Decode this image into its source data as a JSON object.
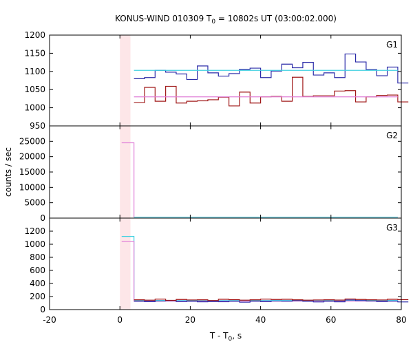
{
  "chart_data": {
    "type": "line",
    "title_prefix": "KONUS-WIND 010309 T",
    "title_sub": "0",
    "title_suffix": " = 10802s UT (03:00:02.000)",
    "xlabel_prefix": "T - T",
    "xlabel_sub": "0",
    "xlabel_suffix": ", s",
    "ylabel": "counts / sec",
    "xlim": [
      -20,
      80
    ],
    "x_ticks": [
      "-20",
      "0",
      "20",
      "40",
      "60",
      "80"
    ],
    "shaded_interval": [
      0,
      3
    ],
    "panels": [
      {
        "name": "G1",
        "ylim": [
          950,
          1200
        ],
        "y_ticks": [
          "950",
          "1000",
          "1050",
          "1100",
          "1150",
          "1200"
        ],
        "series": [
          {
            "color": "#2a2aa8",
            "x": [
              4,
              7,
              10,
              13,
              16,
              19,
              22,
              25,
              28,
              31,
              34,
              37,
              40,
              43,
              46,
              49,
              52,
              55,
              58,
              61,
              64,
              67,
              70,
              73,
              76,
              79
            ],
            "y": [
              1080,
              1083,
              1103,
              1098,
              1093,
              1078,
              1115,
              1096,
              1087,
              1094,
              1106,
              1109,
              1083,
              1101,
              1120,
              1110,
              1125,
              1090,
              1096,
              1083,
              1148,
              1126,
              1105,
              1088,
              1112,
              1068
            ]
          },
          {
            "color": "#a01818",
            "x": [
              4,
              7,
              10,
              13,
              16,
              19,
              22,
              25,
              28,
              31,
              34,
              37,
              40,
              43,
              46,
              49,
              52,
              55,
              58,
              61,
              64,
              67,
              70,
              73,
              76,
              79
            ],
            "y": [
              1014,
              1056,
              1018,
              1059,
              1013,
              1018,
              1019,
              1022,
              1029,
              1005,
              1043,
              1013,
              1030,
              1031,
              1018,
              1084,
              1031,
              1033,
              1033,
              1046,
              1047,
              1016,
              1030,
              1034,
              1035,
              1016
            ]
          },
          {
            "color": "#40d0e0",
            "x": [
              4,
              79
            ],
            "y": [
              1103,
              1103
            ]
          },
          {
            "color": "#e080d8",
            "x": [
              4,
              79
            ],
            "y": [
              1030,
              1030
            ]
          }
        ]
      },
      {
        "name": "G2",
        "ylim": [
          0,
          30000
        ],
        "y_ticks": [
          "0",
          "5000",
          "10000",
          "15000",
          "20000",
          "25000"
        ],
        "series": [
          {
            "color": "#e080d8",
            "x": [
              0.5,
              4,
              4,
              79
            ],
            "y": [
              24500,
              24500,
              320,
              320
            ]
          },
          {
            "color": "#40d0e0",
            "x": [
              4,
              79
            ],
            "y": [
              320,
              320
            ]
          }
        ]
      },
      {
        "name": "G3",
        "ylim": [
          0,
          1400
        ],
        "y_ticks": [
          "0",
          "200",
          "400",
          "600",
          "800",
          "1000",
          "1200"
        ],
        "series": [
          {
            "color": "#40d0e0",
            "x": [
              0.5,
              4,
              4,
              79
            ],
            "y": [
              1120,
              1120,
              140,
              140
            ]
          },
          {
            "color": "#e080d8",
            "x": [
              0.5,
              4,
              4,
              79
            ],
            "y": [
              1045,
              1045,
              130,
              130
            ]
          },
          {
            "color": "#2a2aa8",
            "x": [
              4,
              7,
              10,
              13,
              16,
              19,
              22,
              25,
              28,
              31,
              34,
              37,
              40,
              43,
              46,
              49,
              52,
              55,
              58,
              61,
              64,
              67,
              70,
              73,
              76,
              79
            ],
            "y": [
              128,
              122,
              131,
              137,
              123,
              128,
              120,
              124,
              121,
              127,
              114,
              129,
              124,
              131,
              129,
              136,
              128,
              118,
              127,
              120,
              148,
              138,
              131,
              124,
              130,
              118
            ]
          },
          {
            "color": "#a01818",
            "x": [
              4,
              7,
              10,
              13,
              16,
              19,
              22,
              25,
              28,
              31,
              34,
              37,
              40,
              43,
              46,
              49,
              52,
              55,
              58,
              61,
              64,
              67,
              70,
              73,
              76,
              79
            ],
            "y": [
              150,
              145,
              160,
              142,
              155,
              148,
              150,
              140,
              158,
              152,
              145,
              150,
              160,
              155,
              158,
              150,
              145,
              148,
              150,
              146,
              162,
              155,
              150,
              148,
              158,
              152
            ]
          }
        ]
      }
    ]
  }
}
